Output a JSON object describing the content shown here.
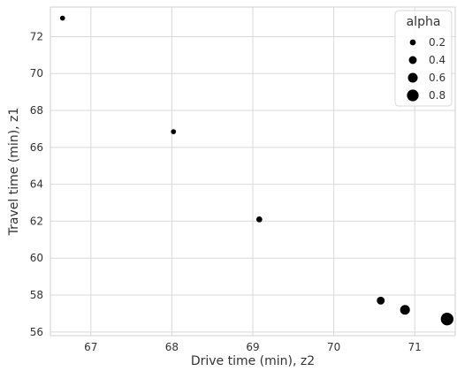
{
  "chart_data": {
    "type": "scatter",
    "title": "",
    "xlabel": "Drive time (min), z2",
    "ylabel": "Travel time (min), z1",
    "xlim": [
      66.5,
      71.5
    ],
    "ylim": [
      55.8,
      73.6
    ],
    "xticks": [
      67,
      68,
      69,
      70,
      71
    ],
    "yticks": [
      56,
      58,
      60,
      62,
      64,
      66,
      68,
      70,
      72
    ],
    "grid": true,
    "points": [
      {
        "x": 66.65,
        "y": 73.0,
        "alpha": 0.1
      },
      {
        "x": 68.02,
        "y": 66.85,
        "alpha": 0.1
      },
      {
        "x": 69.08,
        "y": 62.1,
        "alpha": 0.2
      },
      {
        "x": 70.58,
        "y": 57.7,
        "alpha": 0.4
      },
      {
        "x": 70.88,
        "y": 57.2,
        "alpha": 0.6
      },
      {
        "x": 71.4,
        "y": 56.7,
        "alpha": 0.9
      }
    ],
    "point_color": "#000000",
    "legend": {
      "title": "alpha",
      "position": "top-right",
      "entries": [
        {
          "label": "0.2",
          "value": 0.2
        },
        {
          "label": "0.4",
          "value": 0.4
        },
        {
          "label": "0.6",
          "value": 0.6
        },
        {
          "label": "0.8",
          "value": 0.8
        }
      ]
    }
  }
}
